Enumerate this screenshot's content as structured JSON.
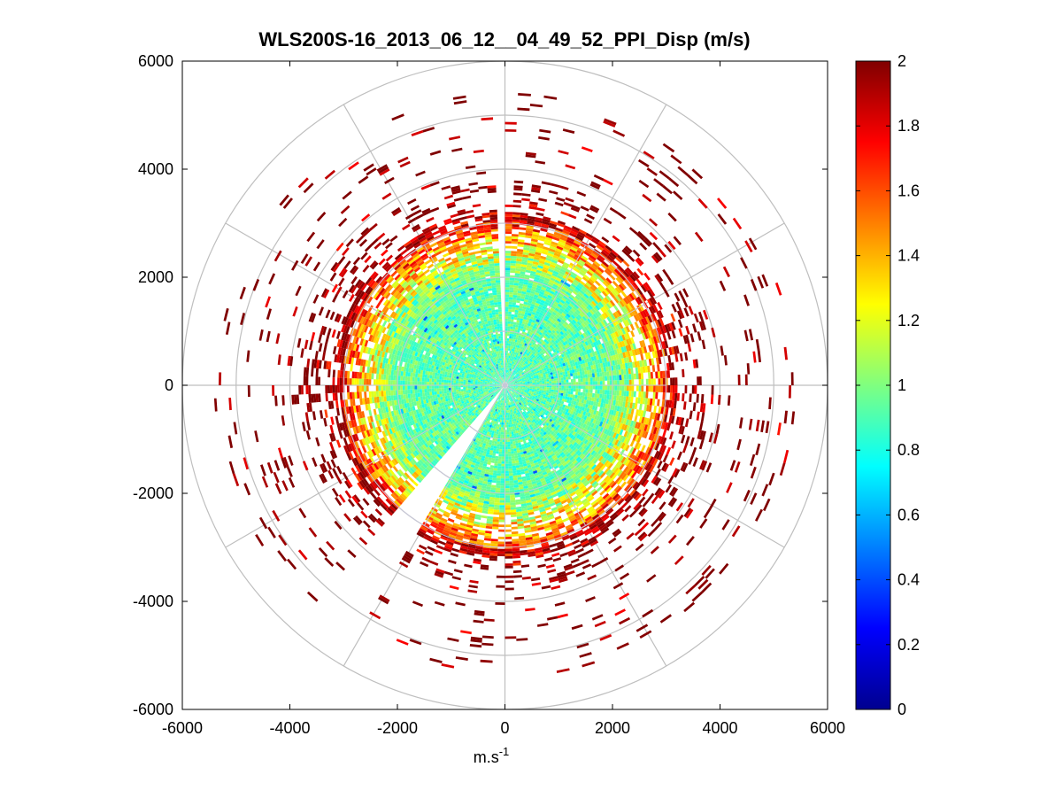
{
  "chart_data": {
    "type": "heatmap",
    "subtype": "polar-ppi-scatter",
    "title": "WLS200S-16_2013_06_12__04_49_52_PPI_Disp (m/s)",
    "xlabel": "m.s",
    "xlabel_superscript": "-1",
    "ylabel": "",
    "xlim": [
      -6000,
      6000
    ],
    "ylim": [
      -6000,
      6000
    ],
    "x_ticks": [
      -6000,
      -4000,
      -2000,
      0,
      2000,
      4000,
      6000
    ],
    "y_ticks": [
      6000,
      4000,
      2000,
      0,
      -2000,
      -4000,
      -6000
    ],
    "x_tick_labels": [
      "-6000",
      "-4000",
      "-2000",
      "0",
      "2000",
      "4000",
      "6000"
    ],
    "y_tick_labels": [
      "6000",
      "4000",
      "2000",
      "0",
      "-2000",
      "-4000",
      "-6000"
    ],
    "polar_rings": [
      1000,
      2000,
      3000,
      4000,
      5000,
      6000
    ],
    "polar_spoke_step_deg": 30,
    "data_extent": {
      "dense_core_radius": 2600,
      "scatter_max_radius": 5400,
      "gap_sectors_deg": [
        [
          89,
          91
        ],
        [
          227,
          239
        ]
      ]
    },
    "value_profile": {
      "radius": [
        0,
        2000,
        2600,
        3000,
        3500,
        5500
      ],
      "typical_value": [
        0.9,
        0.95,
        1.3,
        1.7,
        2.0,
        2.0
      ]
    },
    "colorbar": {
      "colormap": "jet",
      "min": 0,
      "max": 2,
      "ticks": [
        2,
        1.8,
        1.6,
        1.4,
        1.2,
        1,
        0.8,
        0.6,
        0.4,
        0.2,
        0
      ],
      "tick_labels": [
        "2",
        "1.8",
        "1.6",
        "1.4",
        "1.2",
        "1",
        "0.8",
        "0.6",
        "0.4",
        "0.2",
        "0"
      ]
    },
    "colors": {
      "grid": "#bfbfbf",
      "background": "#ffffff",
      "axes": "#000000"
    }
  }
}
